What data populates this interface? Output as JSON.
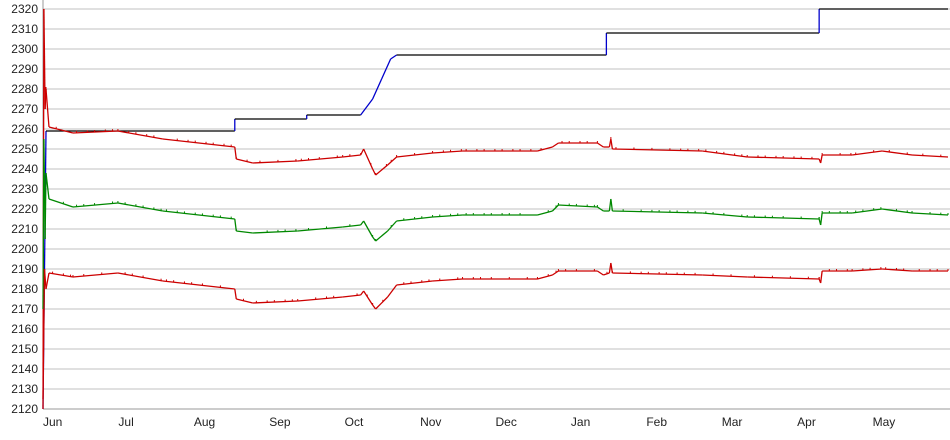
{
  "chart_data": {
    "type": "line",
    "title": "",
    "xlabel": "",
    "ylabel": "",
    "ylim": [
      2120,
      2320
    ],
    "yticks": [
      2120,
      2130,
      2140,
      2150,
      2160,
      2170,
      2180,
      2190,
      2200,
      2210,
      2220,
      2230,
      2240,
      2250,
      2260,
      2270,
      2280,
      2290,
      2300,
      2310,
      2320
    ],
    "xlim": [
      0,
      302
    ],
    "x_tick_labels": [
      "Jun",
      "Jul",
      "Aug",
      "Sep",
      "Oct",
      "Nov",
      "Dec",
      "Jan",
      "Feb",
      "Mar",
      "Apr",
      "May"
    ],
    "grid": true,
    "legend": "none",
    "series": [
      {
        "color": "#000000",
        "rise_color": "#0000cc",
        "points": [
          [
            0,
            2120
          ],
          [
            1,
            2259
          ],
          [
            64,
            2259
          ],
          [
            64,
            2265
          ],
          [
            88,
            2265
          ],
          [
            88,
            2267
          ],
          [
            106,
            2267
          ],
          [
            110,
            2275
          ],
          [
            113,
            2285
          ],
          [
            116,
            2295
          ],
          [
            118,
            2297
          ],
          [
            188,
            2297
          ],
          [
            188,
            2308
          ],
          [
            259,
            2308
          ],
          [
            259,
            2320
          ],
          [
            302,
            2320
          ]
        ]
      },
      {
        "color": "#cc0000",
        "points": [
          [
            0,
            2120
          ],
          [
            0.3,
            2320
          ],
          [
            0.7,
            2270
          ],
          [
            1,
            2280
          ],
          [
            2,
            2261
          ],
          [
            10,
            2258
          ],
          [
            25,
            2259
          ],
          [
            40,
            2255
          ],
          [
            64,
            2251
          ],
          [
            64.5,
            2245
          ],
          [
            70,
            2243
          ],
          [
            85,
            2244
          ],
          [
            100,
            2246
          ],
          [
            106,
            2247
          ],
          [
            107,
            2250
          ],
          [
            110,
            2240
          ],
          [
            111,
            2237
          ],
          [
            115,
            2242
          ],
          [
            118,
            2246
          ],
          [
            130,
            2248
          ],
          [
            140,
            2249
          ],
          [
            165,
            2249
          ],
          [
            170,
            2251
          ],
          [
            172,
            2253
          ],
          [
            185,
            2253
          ],
          [
            187,
            2251
          ],
          [
            189,
            2251
          ],
          [
            189.5,
            2255
          ],
          [
            190,
            2250
          ],
          [
            220,
            2249
          ],
          [
            235,
            2246
          ],
          [
            259,
            2245
          ],
          [
            259.5,
            2243
          ],
          [
            260,
            2247
          ],
          [
            270,
            2247
          ],
          [
            280,
            2249
          ],
          [
            290,
            2247
          ],
          [
            302,
            2246
          ]
        ]
      },
      {
        "color": "#008800",
        "points": [
          [
            0,
            2170
          ],
          [
            0.3,
            2255
          ],
          [
            0.7,
            2205
          ],
          [
            1,
            2238
          ],
          [
            2,
            2225
          ],
          [
            10,
            2221
          ],
          [
            25,
            2223
          ],
          [
            40,
            2219
          ],
          [
            64,
            2215
          ],
          [
            64.5,
            2209
          ],
          [
            70,
            2208
          ],
          [
            85,
            2209
          ],
          [
            100,
            2211
          ],
          [
            106,
            2212
          ],
          [
            107,
            2214
          ],
          [
            110,
            2206
          ],
          [
            111,
            2204
          ],
          [
            115,
            2209
          ],
          [
            118,
            2214
          ],
          [
            130,
            2216
          ],
          [
            140,
            2217
          ],
          [
            165,
            2217
          ],
          [
            170,
            2219
          ],
          [
            172,
            2222
          ],
          [
            185,
            2221
          ],
          [
            187,
            2219
          ],
          [
            189,
            2219
          ],
          [
            189.5,
            2225
          ],
          [
            190,
            2219
          ],
          [
            220,
            2218
          ],
          [
            235,
            2216
          ],
          [
            259,
            2215
          ],
          [
            259.5,
            2212
          ],
          [
            260,
            2218
          ],
          [
            270,
            2218
          ],
          [
            280,
            2220
          ],
          [
            290,
            2218
          ],
          [
            302,
            2217
          ]
        ]
      },
      {
        "color": "#cc0000",
        "points": [
          [
            0,
            2125
          ],
          [
            0.5,
            2190
          ],
          [
            1,
            2180
          ],
          [
            2,
            2188
          ],
          [
            10,
            2186
          ],
          [
            25,
            2188
          ],
          [
            40,
            2184
          ],
          [
            64,
            2180
          ],
          [
            64.5,
            2175
          ],
          [
            70,
            2173
          ],
          [
            85,
            2174
          ],
          [
            100,
            2176
          ],
          [
            106,
            2177
          ],
          [
            107,
            2179
          ],
          [
            110,
            2172
          ],
          [
            111,
            2170
          ],
          [
            115,
            2176
          ],
          [
            118,
            2182
          ],
          [
            130,
            2184
          ],
          [
            140,
            2185
          ],
          [
            165,
            2185
          ],
          [
            170,
            2187
          ],
          [
            172,
            2189
          ],
          [
            185,
            2189
          ],
          [
            187,
            2187
          ],
          [
            189,
            2188
          ],
          [
            189.5,
            2193
          ],
          [
            190,
            2188
          ],
          [
            220,
            2187
          ],
          [
            235,
            2186
          ],
          [
            259,
            2185
          ],
          [
            259.5,
            2183
          ],
          [
            260,
            2189
          ],
          [
            270,
            2189
          ],
          [
            280,
            2190
          ],
          [
            290,
            2189
          ],
          [
            302,
            2189
          ]
        ]
      }
    ]
  }
}
